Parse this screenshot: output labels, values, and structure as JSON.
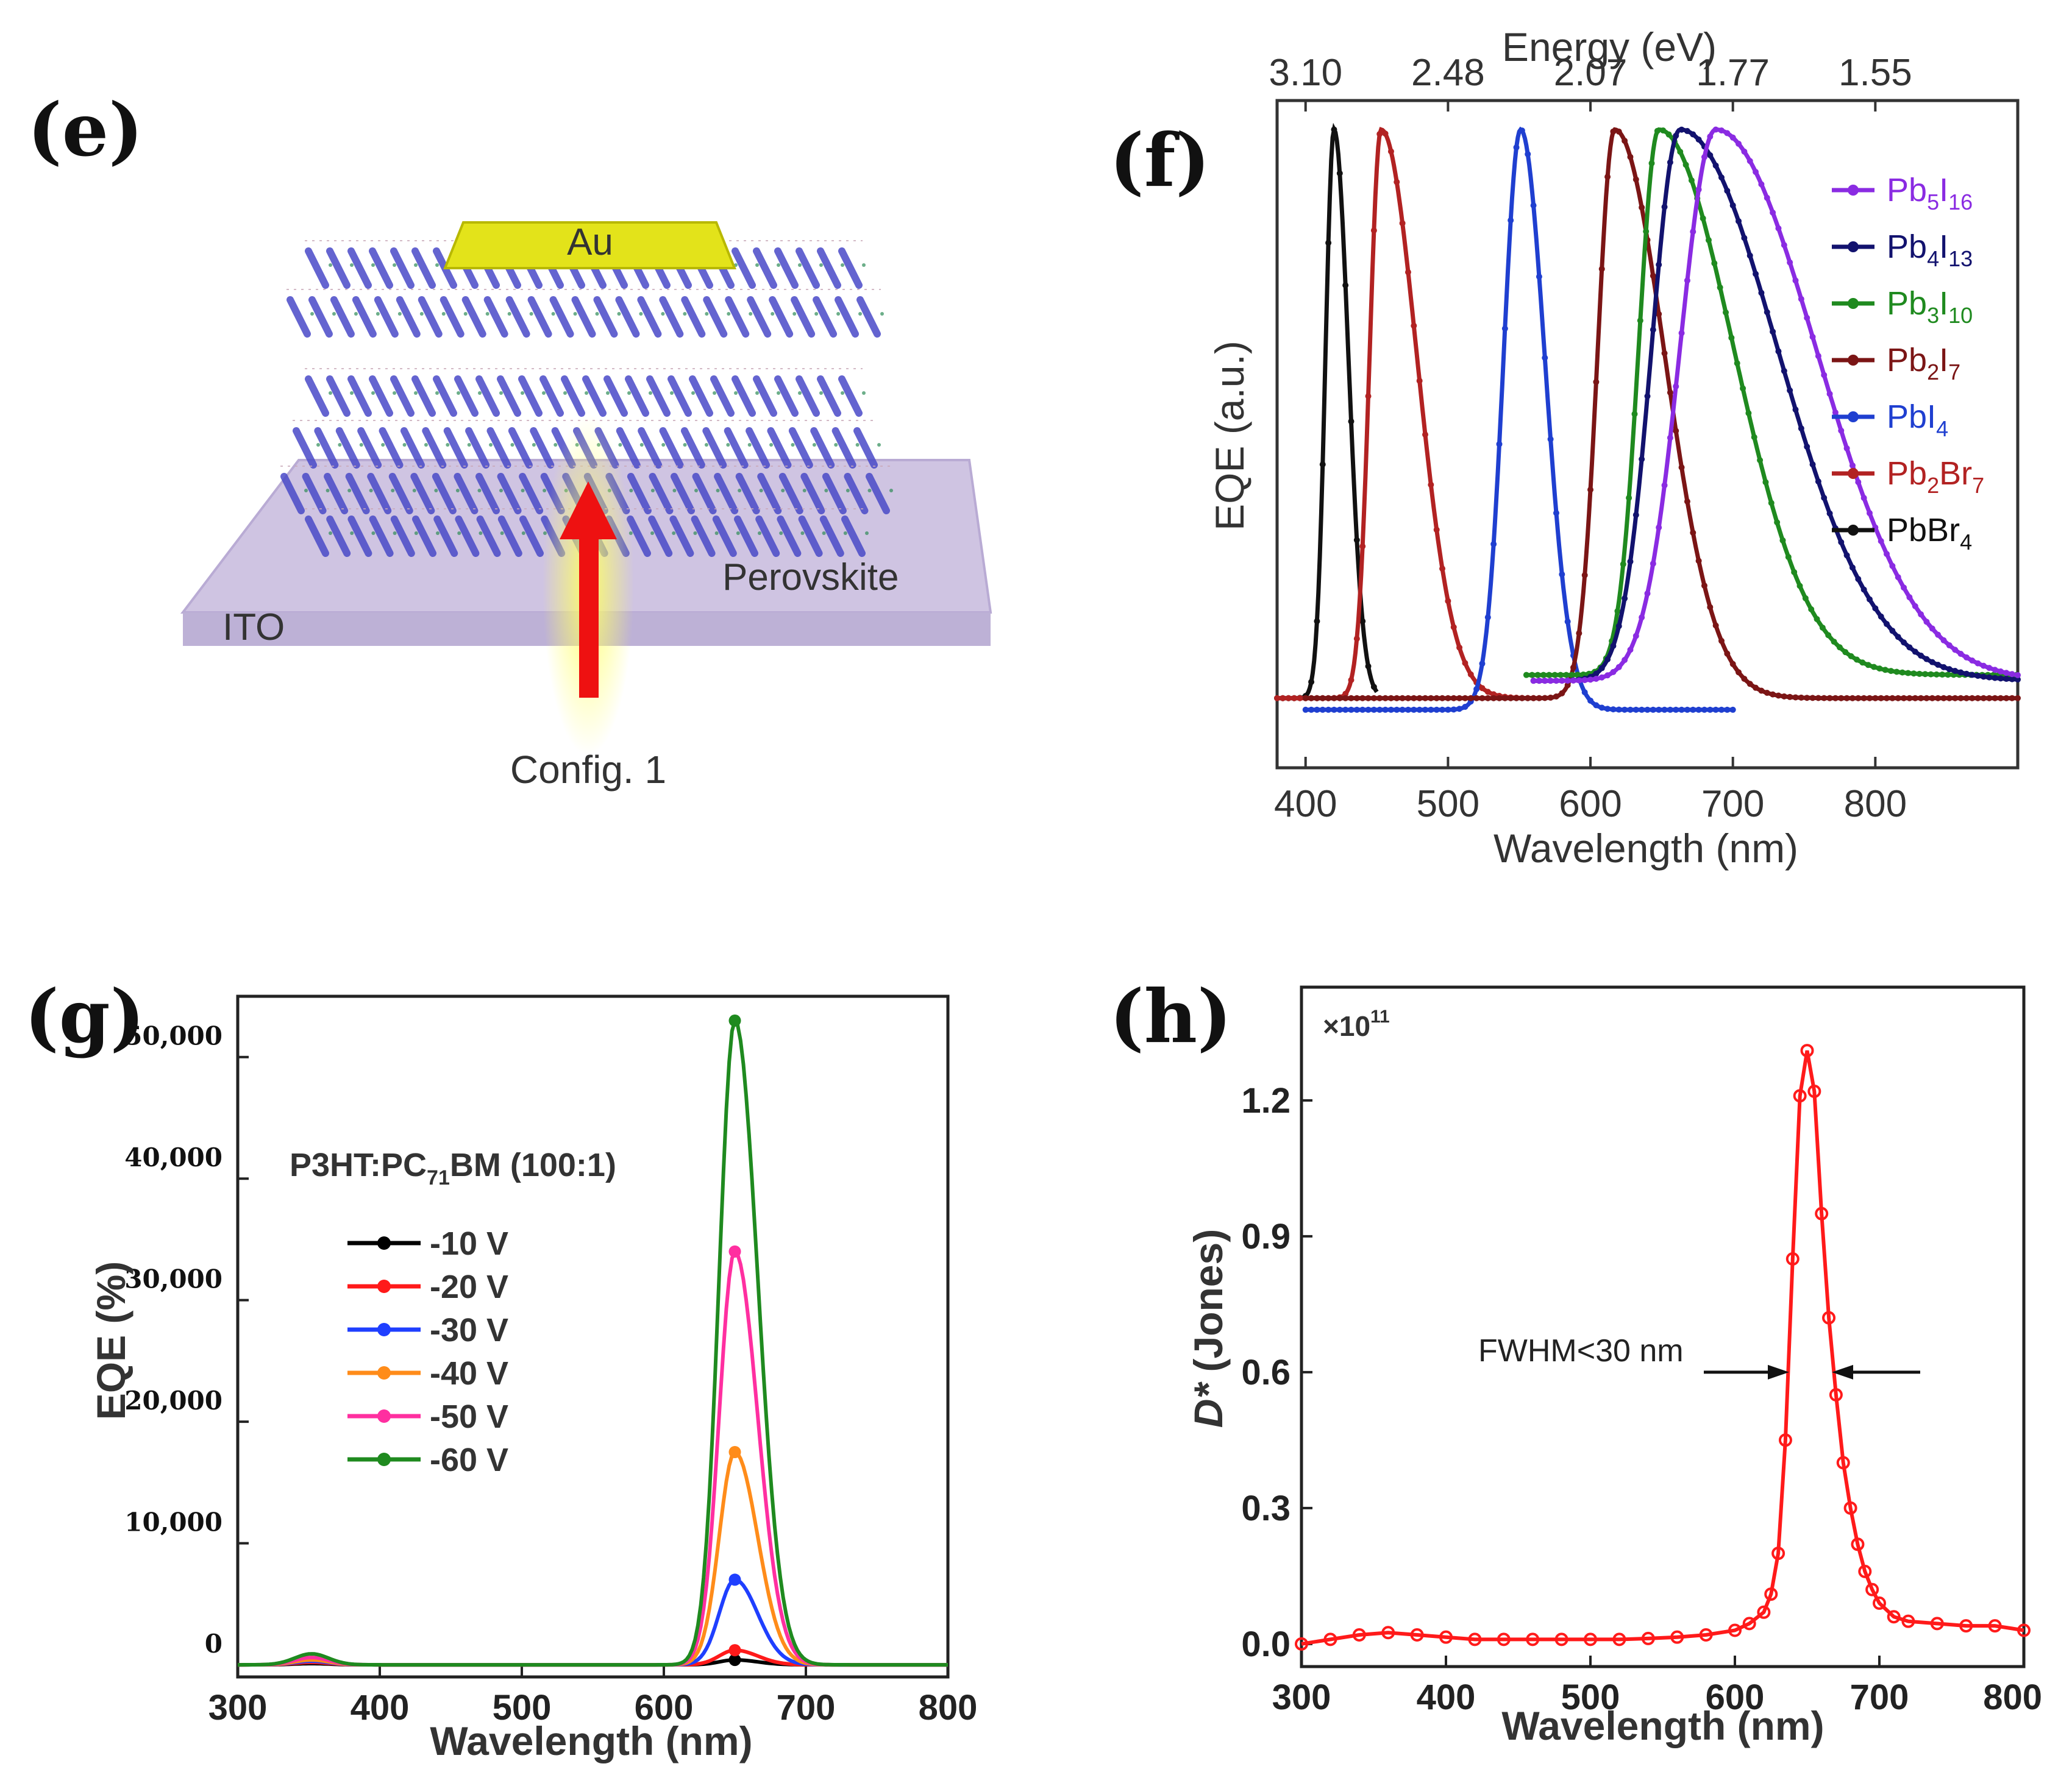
{
  "panels": {
    "e": {
      "label": "(e)",
      "layers": {
        "top": "Au",
        "bottom": "ITO",
        "middle": "Perovskite"
      },
      "caption": "Config. 1"
    }
  },
  "chart_data": [
    {
      "id": "f",
      "panel_label": "(f)",
      "type": "line",
      "title": "",
      "xlabel": "Wavelength (nm)",
      "ylabel": "EQE (a.u.)",
      "x2label": "Energy (eV)",
      "xlim": [
        380,
        900
      ],
      "ylim": [
        -0.1,
        1.05
      ],
      "xticks": [
        "400",
        "500",
        "600",
        "700",
        "800"
      ],
      "x2ticks": [
        "3.10",
        "2.48",
        "2.07",
        "1.77",
        "1.55"
      ],
      "x2tick_positions_nm": [
        400,
        500,
        600,
        700,
        800
      ],
      "series": [
        {
          "name": "PbBr4",
          "legend": [
            "PbBr",
            "4",
            ""
          ],
          "color": "#111111",
          "peak_nm": 420,
          "fwhm_left": 6,
          "fwhm_right": 10,
          "range": [
            380,
            450
          ],
          "baseline": 0.02
        },
        {
          "name": "Pb2Br7",
          "legend": [
            "Pb",
            "2",
            "Br",
            "7"
          ],
          "color": "#b22222",
          "peak_nm": 453,
          "fwhm_left": 8,
          "fwhm_right": 25,
          "range": [
            380,
            560
          ],
          "baseline": 0.02
        },
        {
          "name": "PbI4",
          "legend": [
            "PbI",
            "4"
          ],
          "color": "#1f3fd0",
          "peak_nm": 551,
          "fwhm_left": 12,
          "fwhm_right": 17,
          "range": [
            400,
            700
          ],
          "baseline": 0.0
        },
        {
          "name": "Pb2I7",
          "legend": [
            "Pb",
            "2",
            "I",
            "7"
          ],
          "color": "#7b1515",
          "peak_nm": 617,
          "fwhm_left": 12,
          "fwhm_right": 35,
          "range": [
            400,
            900
          ],
          "baseline": 0.02
        },
        {
          "name": "Pb3I10",
          "legend": [
            "Pb",
            "3",
            "I",
            "10"
          ],
          "color": "#1f8a1f",
          "peak_nm": 648,
          "fwhm_left": 14,
          "fwhm_right": 52,
          "range": [
            555,
            900
          ],
          "baseline": 0.06
        },
        {
          "name": "Pb4I13",
          "legend": [
            "Pb",
            "4",
            "I",
            "13"
          ],
          "color": "#12126e",
          "peak_nm": 663,
          "fwhm_left": 20,
          "fwhm_right": 68,
          "range": [
            560,
            900
          ],
          "baseline": 0.05
        },
        {
          "name": "Pb5I16",
          "legend": [
            "Pb",
            "5",
            "I",
            "16"
          ],
          "color": "#8a2be2",
          "peak_nm": 688,
          "fwhm_left": 25,
          "fwhm_right": 70,
          "range": [
            560,
            900
          ],
          "baseline": 0.05
        }
      ]
    },
    {
      "id": "g",
      "panel_label": "(g)",
      "type": "line",
      "title": "",
      "xlabel": "Wavelength (nm)",
      "ylabel": "EQE (%)",
      "xlim": [
        300,
        800
      ],
      "ylim": [
        -1000,
        55000
      ],
      "xticks": [
        "300",
        "400",
        "500",
        "600",
        "700",
        "800"
      ],
      "yticks": [
        "0",
        "10,000",
        "20,000",
        "30,000",
        "40,000",
        "50,000"
      ],
      "ytick_values": [
        0,
        10000,
        20000,
        30000,
        40000,
        50000
      ],
      "legend_title": [
        "P3HT:PC",
        "71",
        "BM (100:1)"
      ],
      "series": [
        {
          "name": "-10 V",
          "color": "#000000",
          "marker": "square",
          "peak": 400,
          "bump": 100
        },
        {
          "name": "-20 V",
          "color": "#ff1a1a",
          "marker": "circle",
          "peak": 1200,
          "bump": 200
        },
        {
          "name": "-30 V",
          "color": "#1f3fff",
          "marker": "triangle-up",
          "peak": 7000,
          "bump": 300
        },
        {
          "name": "-40 V",
          "color": "#ff8c1a",
          "marker": "triangle-down",
          "peak": 17500,
          "bump": 400
        },
        {
          "name": "-50 V",
          "color": "#ff2fa0",
          "marker": "diamond",
          "peak": 34000,
          "bump": 600
        },
        {
          "name": "-60 V",
          "color": "#1f8a1f",
          "marker": "triangle-left",
          "peak": 53000,
          "bump": 900
        }
      ],
      "peak_nm": 650
    },
    {
      "id": "h",
      "panel_label": "(h)",
      "type": "line",
      "title": "",
      "xlabel": "Wavelength (nm)",
      "ylabel_italic": "D*",
      "ylabel_rest": " (Jones)",
      "ylim_label": "×10",
      "ylim_label_exp": "11",
      "xlim": [
        300,
        800
      ],
      "ylim": [
        -0.05,
        1.45
      ],
      "xticks": [
        "300",
        "400",
        "500",
        "600",
        "700",
        "800"
      ],
      "yticks": [
        "0.0",
        "0.3",
        "0.6",
        "0.9",
        "1.2"
      ],
      "ytick_values": [
        0.0,
        0.3,
        0.6,
        0.9,
        1.2
      ],
      "annotation": "FWHM<30 nm",
      "series": [
        {
          "name": "D*",
          "color": "#ff1a1a",
          "x": [
            300,
            320,
            340,
            360,
            380,
            400,
            420,
            440,
            460,
            480,
            500,
            520,
            540,
            560,
            580,
            600,
            610,
            620,
            625,
            630,
            635,
            640,
            645,
            650,
            655,
            660,
            665,
            670,
            675,
            680,
            685,
            690,
            695,
            700,
            710,
            720,
            740,
            760,
            780,
            800
          ],
          "y": [
            0.0,
            0.01,
            0.02,
            0.025,
            0.02,
            0.015,
            0.01,
            0.01,
            0.01,
            0.01,
            0.01,
            0.01,
            0.012,
            0.015,
            0.02,
            0.03,
            0.045,
            0.07,
            0.11,
            0.2,
            0.45,
            0.85,
            1.21,
            1.31,
            1.22,
            0.95,
            0.72,
            0.55,
            0.4,
            0.3,
            0.22,
            0.16,
            0.12,
            0.09,
            0.06,
            0.05,
            0.045,
            0.04,
            0.04,
            0.03
          ]
        }
      ]
    }
  ]
}
